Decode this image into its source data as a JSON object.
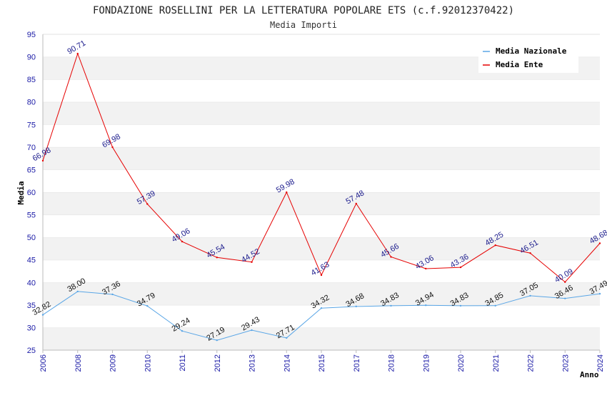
{
  "chart_data": {
    "type": "line",
    "title": "FONDAZIONE ROSELLINI PER LA LETTERATURA POPOLARE ETS (c.f.92012370422)",
    "subtitle": "Media Importi",
    "xlabel": "Anno",
    "ylabel": "Media",
    "ylim": [
      25,
      95
    ],
    "yticks": [
      "25",
      "30",
      "35",
      "40",
      "45",
      "50",
      "55",
      "60",
      "65",
      "70",
      "75",
      "80",
      "85",
      "90",
      "95"
    ],
    "categories": [
      "2006",
      "2008",
      "2009",
      "2010",
      "2011",
      "2012",
      "2013",
      "2014",
      "2015",
      "2017",
      "2018",
      "2019",
      "2020",
      "2021",
      "2022",
      "2023",
      "2024"
    ],
    "grid": "horizontal alternating bands",
    "legend_position": "top-right",
    "series": [
      {
        "name": "Media Nazionale",
        "color": "#5aa6e6",
        "values": [
          32.82,
          38.0,
          37.36,
          34.79,
          29.24,
          27.19,
          29.43,
          27.71,
          34.32,
          34.68,
          34.83,
          34.94,
          34.83,
          34.85,
          37.05,
          36.46,
          37.49
        ],
        "labels": [
          "32.82",
          "38.00",
          "37.36",
          "34.79",
          "29.24",
          "27.19",
          "29.43",
          "27.71",
          "34.32",
          "34.68",
          "34.83",
          "34.94",
          "34.83",
          "34.85",
          "37.05",
          "36.46",
          "37.49"
        ]
      },
      {
        "name": "Media Ente",
        "color": "#e60000",
        "values": [
          66.98,
          90.71,
          69.98,
          57.39,
          49.06,
          45.54,
          44.52,
          59.98,
          41.63,
          57.48,
          45.66,
          43.06,
          43.36,
          48.25,
          46.51,
          40.09,
          48.68
        ],
        "labels": [
          "66.98",
          "90.71",
          "69.98",
          "57.39",
          "49.06",
          "45.54",
          "44.52",
          "59.98",
          "41.63",
          "57.48",
          "45.66",
          "43.06",
          "43.36",
          "48.25",
          "46.51",
          "40.09",
          "48.68"
        ]
      }
    ]
  }
}
